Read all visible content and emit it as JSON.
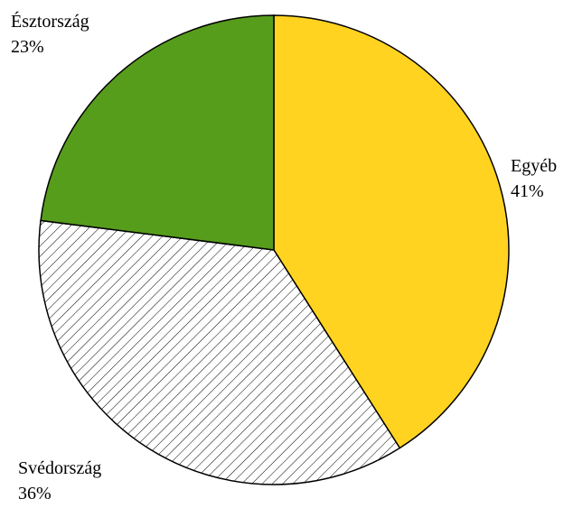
{
  "chart_data": {
    "type": "pie",
    "categories": [
      "Egyéb",
      "Svédország",
      "Észtország"
    ],
    "values": [
      41,
      36,
      23
    ],
    "value_labels": [
      "41%",
      "36%",
      "23%"
    ],
    "colors": [
      "#ffd320",
      "#ffffff",
      "#579d1c"
    ],
    "hatch": [
      false,
      true,
      false
    ]
  }
}
